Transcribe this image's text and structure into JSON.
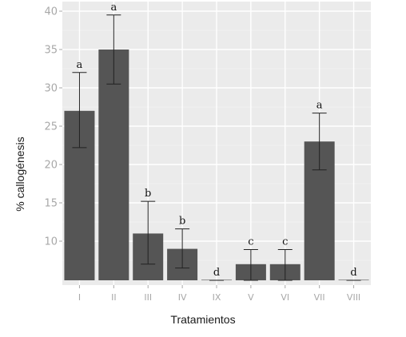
{
  "chart_data": {
    "type": "bar",
    "title": "",
    "xlabel": "Tratamientos",
    "ylabel": "% callogénesis",
    "categories": [
      "I",
      "II",
      "III",
      "IV",
      "IX",
      "V",
      "VI",
      "VII",
      "VIII"
    ],
    "values": [
      27,
      35,
      11,
      9,
      5,
      7,
      7,
      23,
      5
    ],
    "error_low": [
      22.2,
      30.5,
      7.0,
      6.5,
      5,
      5.0,
      5.0,
      19.3,
      5
    ],
    "error_high": [
      32.0,
      39.5,
      15.2,
      11.6,
      5,
      8.9,
      8.9,
      26.7,
      5
    ],
    "significance_labels": [
      "a",
      "a",
      "b",
      "b",
      "d",
      "c",
      "c",
      "a",
      "d"
    ],
    "y_ticks": [
      "40",
      "35",
      "30",
      "25",
      "20",
      "15",
      "10"
    ],
    "y_tick_values": [
      40,
      35,
      30,
      25,
      20,
      15,
      10
    ],
    "ylim": [
      5,
      41
    ],
    "grid": true,
    "legend": "none",
    "colors": {
      "panel_background": "#ebebeb",
      "grid_major": "#ffffff",
      "grid_minor": "#f4f4f4",
      "bar_fill": "#555555",
      "error_bar": "#222222",
      "tick_text": "#a8a8a8"
    }
  }
}
